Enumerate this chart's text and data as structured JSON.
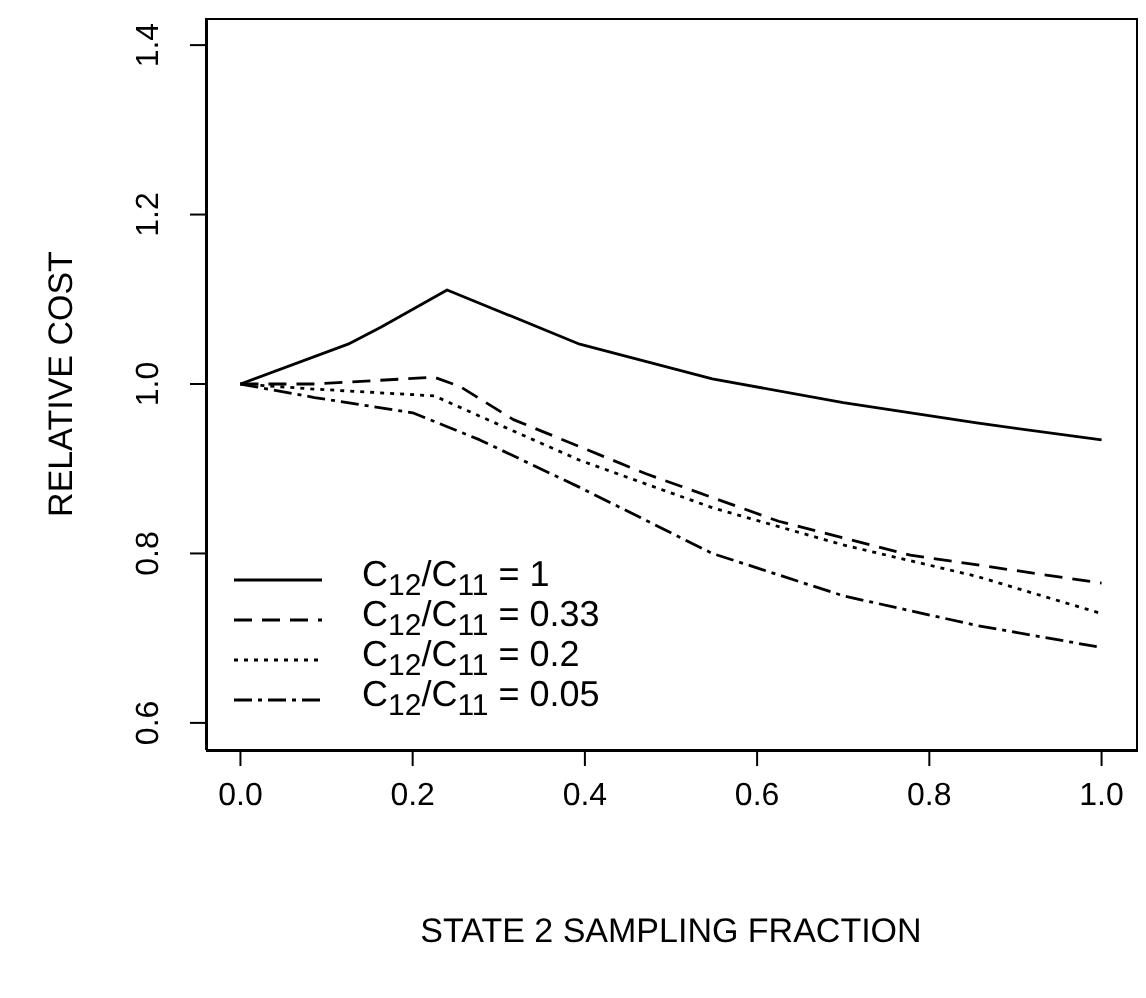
{
  "chart_data": {
    "type": "line",
    "xlabel": "STATE 2 SAMPLING FRACTION",
    "ylabel": "RELATIVE COST",
    "xlim": [
      -0.04,
      1.04
    ],
    "ylim": [
      0.568,
      1.432
    ],
    "xticks": [
      {
        "value": 0,
        "label": "0.0"
      },
      0.2,
      0.4,
      0.6,
      0.8,
      {
        "value": 1,
        "label": "1.0"
      }
    ],
    "yticks": [
      0.6,
      0.8,
      {
        "value": 1,
        "label": "1.0"
      },
      1.2,
      1.4
    ],
    "grid": false,
    "legend": "bottom left",
    "marker": "none",
    "series": [
      {
        "name": "C$_{12}$/C$_{11}$ = 1",
        "color": "#000000",
        "line_style": "solid",
        "x": [
          0,
          0.125,
          0.163,
          0.24,
          0.394,
          0.548,
          0.7,
          0.855,
          1
        ],
        "values": [
          1.0,
          1.047,
          1.067,
          1.111,
          1.047,
          1.006,
          0.978,
          0.954,
          0.934
        ]
      },
      {
        "name": "C$_{12}$/C$_{11}$ = 0.33",
        "color": "#000000",
        "line_style": "dashed",
        "x": [
          0,
          0.086,
          0.225,
          0.255,
          0.317,
          0.471,
          0.625,
          0.778,
          1
        ],
        "values": [
          1.0,
          1.0,
          1.008,
          0.997,
          0.958,
          0.894,
          0.838,
          0.798,
          0.765
        ]
      },
      {
        "name": "C$_{12}$/C$_{11}$ = 0.2",
        "color": "#000000",
        "line_style": "dotted",
        "x": [
          0,
          0.086,
          0.225,
          0.278,
          0.394,
          0.548,
          0.7,
          0.855,
          1
        ],
        "values": [
          1.0,
          0.994,
          0.986,
          0.962,
          0.91,
          0.854,
          0.81,
          0.773,
          0.729
        ]
      },
      {
        "name": "C$_{12}$/C$_{11}$ = 0.05",
        "color": "#000000",
        "line_style": "dashdot",
        "x": [
          0,
          0.086,
          0.2,
          0.278,
          0.394,
          0.548,
          0.7,
          0.855,
          1
        ],
        "values": [
          1.0,
          0.984,
          0.966,
          0.934,
          0.878,
          0.8,
          0.75,
          0.715,
          0.689
        ]
      }
    ]
  }
}
